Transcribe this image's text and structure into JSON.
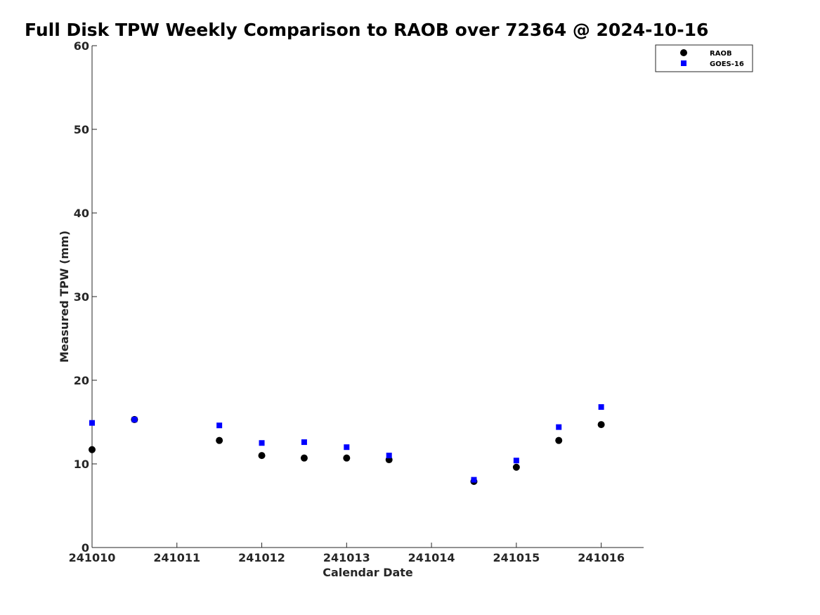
{
  "chart_data": {
    "type": "scatter",
    "title": "Full Disk TPW Weekly Comparison to RAOB over 72364 @ 2024-10-16",
    "xlabel": "Calendar Date",
    "ylabel": "Measured TPW (mm)",
    "xlim": [
      241010,
      241016.5
    ],
    "ylim": [
      0,
      60
    ],
    "xticks": [
      241010,
      241011,
      241012,
      241013,
      241014,
      241015,
      241016
    ],
    "xtick_labels": [
      "241010",
      "241011",
      "241012",
      "241013",
      "241014",
      "241015",
      "241016"
    ],
    "yticks": [
      0,
      10,
      20,
      30,
      40,
      50,
      60
    ],
    "ytick_labels": [
      "0",
      "10",
      "20",
      "30",
      "40",
      "50",
      "60"
    ],
    "grid": false,
    "legend_position": "top-right",
    "series": [
      {
        "name": "RAOB",
        "marker": "circle",
        "color": "#000000",
        "x": [
          241010,
          241010.5,
          241011.5,
          241012,
          241012.5,
          241013,
          241013.5,
          241014.5,
          241015,
          241015.5,
          241016
        ],
        "y": [
          11.7,
          15.3,
          12.8,
          11.0,
          10.7,
          10.7,
          10.5,
          7.9,
          9.6,
          12.8,
          14.7
        ]
      },
      {
        "name": "GOES-16",
        "marker": "square",
        "color": "#0000ff",
        "x": [
          241010,
          241010.5,
          241011.5,
          241012,
          241012.5,
          241013,
          241013.5,
          241014.5,
          241015,
          241015.5,
          241016
        ],
        "y": [
          14.9,
          15.3,
          14.6,
          12.5,
          12.6,
          12.0,
          11.0,
          8.1,
          10.4,
          14.4,
          16.8
        ]
      }
    ]
  }
}
